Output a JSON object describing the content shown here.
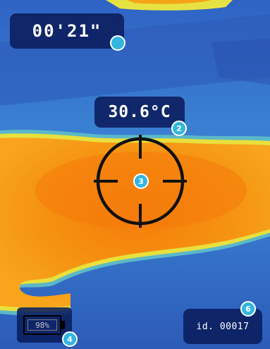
{
  "timer": {
    "value": "00'21\""
  },
  "temperature": {
    "value": "30.6°C"
  },
  "battery": {
    "label": "98%",
    "level": 0.98
  },
  "device_id": {
    "label": "id. 00017"
  },
  "annotations": [
    {
      "label": ""
    },
    {
      "label": "2"
    },
    {
      "label": "3"
    },
    {
      "label": "4"
    },
    {
      "label": "6"
    }
  ],
  "colors": {
    "cold": "#1f3ca8",
    "cool": "#3e82d6",
    "mid": "#5fb6c9",
    "warm_edge": "#e7e243",
    "warm": "#f59a12",
    "hot": "#f57e0c",
    "badge": "#33b6e0"
  }
}
